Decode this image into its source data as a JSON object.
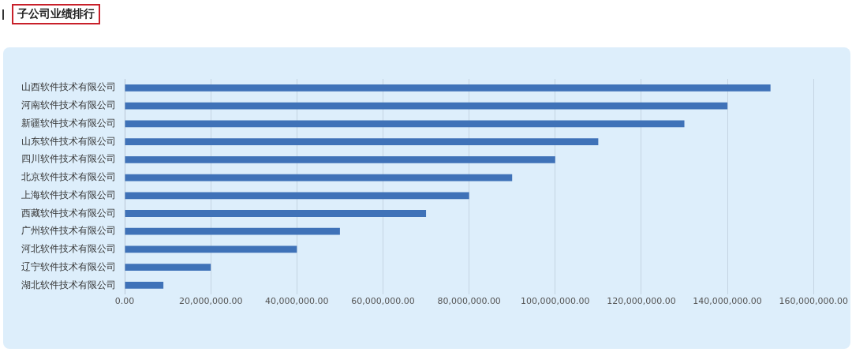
{
  "chart_data": {
    "type": "bar",
    "orientation": "horizontal",
    "title": "子公司业绩排行",
    "categories": [
      "山西软件技术有限公司",
      "河南软件技术有限公司",
      "新疆软件技术有限公司",
      "山东软件技术有限公司",
      "四川软件技术有限公司",
      "北京软件技术有限公司",
      "上海软件技术有限公司",
      "西藏软件技术有限公司",
      "广州软件技术有限公司",
      "河北软件技术有限公司",
      "辽宁软件技术有限公司",
      "湖北软件技术有限公司"
    ],
    "values": [
      150000000,
      140000000,
      130000000,
      110000000,
      100000000,
      90000000,
      80000000,
      70000000,
      50000000,
      40000000,
      20000000,
      9000000
    ],
    "color": "#3f72b8",
    "xlim": [
      0,
      160000000
    ],
    "xticks": [
      {
        "value": 0,
        "label": "0.00"
      },
      {
        "value": 20000000,
        "label": "20,000,000.00"
      },
      {
        "value": 40000000,
        "label": "40,000,000.00"
      },
      {
        "value": 60000000,
        "label": "60,000,000.00"
      },
      {
        "value": 80000000,
        "label": "80,000,000.00"
      },
      {
        "value": 100000000,
        "label": "100,000,000.00"
      },
      {
        "value": 120000000,
        "label": "120,000,000.00"
      },
      {
        "value": 140000000,
        "label": "140,000,000.00"
      },
      {
        "value": 160000000,
        "label": "160,000,000.00"
      }
    ],
    "grid": "x"
  }
}
